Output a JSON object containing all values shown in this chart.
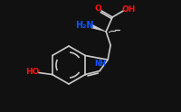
{
  "bg_color": "#111111",
  "bond_color": "#cccccc",
  "red_color": "#ff1111",
  "blue_color": "#1155ff",
  "figsize": [
    2.0,
    1.24
  ],
  "dpi": 100,
  "xlim": [
    0,
    10
  ],
  "ylim": [
    0,
    6.2
  ]
}
